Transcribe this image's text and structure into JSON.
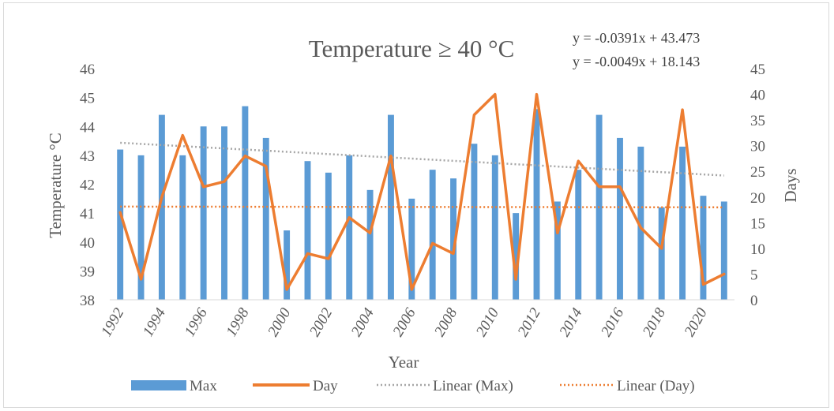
{
  "chart_data": {
    "type": "bar",
    "title": "Temperature ≥ 40 °C",
    "xlabel": "Year",
    "ylabel": "Temperature  °C",
    "y2label": "Days",
    "ylim": [
      38,
      46
    ],
    "y2lim": [
      0,
      45
    ],
    "yticks": [
      "38",
      "39",
      "40",
      "41",
      "42",
      "43",
      "44",
      "45",
      "46"
    ],
    "y2ticks": [
      "0",
      "5",
      "10",
      "15",
      "20",
      "25",
      "30",
      "35",
      "40",
      "45"
    ],
    "x": [
      1992,
      1993,
      1994,
      1995,
      1996,
      1997,
      1998,
      1999,
      2000,
      2001,
      2002,
      2003,
      2004,
      2005,
      2006,
      2007,
      2008,
      2009,
      2010,
      2011,
      2012,
      2013,
      2014,
      2015,
      2016,
      2017,
      2018,
      2019,
      2020,
      2021
    ],
    "x_tick_labels": [
      "1992",
      "1994",
      "1996",
      "1998",
      "2000",
      "2002",
      "2004",
      "2006",
      "2008",
      "2010",
      "2012",
      "2014",
      "2016",
      "2018",
      "2020"
    ],
    "series": [
      {
        "name": "Max",
        "type": "bar",
        "axis": "left",
        "color": "#5B9BD5",
        "values": [
          43.2,
          43.0,
          44.4,
          43.0,
          44.0,
          44.0,
          44.7,
          43.6,
          40.4,
          42.8,
          42.4,
          43.0,
          41.8,
          44.4,
          41.5,
          42.5,
          42.2,
          43.4,
          43.0,
          41.0,
          44.6,
          41.4,
          42.5,
          44.4,
          43.6,
          43.3,
          41.2,
          43.3,
          41.6,
          41.4
        ]
      },
      {
        "name": "Day",
        "type": "line",
        "axis": "right",
        "color": "#ED7D31",
        "values": [
          17,
          4,
          20,
          32,
          22,
          23,
          28,
          26,
          2,
          9,
          8,
          16,
          13,
          28,
          2,
          11,
          9,
          36,
          40,
          4,
          40,
          13,
          27,
          22,
          22,
          14,
          10,
          37,
          3,
          5
        ]
      }
    ],
    "trendlines": [
      {
        "name": "Linear (Max)",
        "series": "Max",
        "axis": "left",
        "slope": -0.0391,
        "intercept": 43.473,
        "color": "#A6A6A6",
        "equation": "y = -0.0391x + 43.473"
      },
      {
        "name": "Linear (Day)",
        "series": "Day",
        "axis": "right",
        "slope": -0.0049,
        "intercept": 18.143,
        "color": "#ED7D31",
        "equation": "y = -0.0049x + 18.143"
      }
    ],
    "grid": false,
    "legend_position": "bottom"
  },
  "legend": [
    {
      "label": "Max",
      "kind": "bar",
      "color": "#5B9BD5"
    },
    {
      "label": "Day",
      "kind": "line",
      "color": "#ED7D31"
    },
    {
      "label": "Linear (Max)",
      "kind": "dotted",
      "color": "#A6A6A6"
    },
    {
      "label": "Linear (Day)",
      "kind": "dotted",
      "color": "#ED7D31"
    }
  ]
}
